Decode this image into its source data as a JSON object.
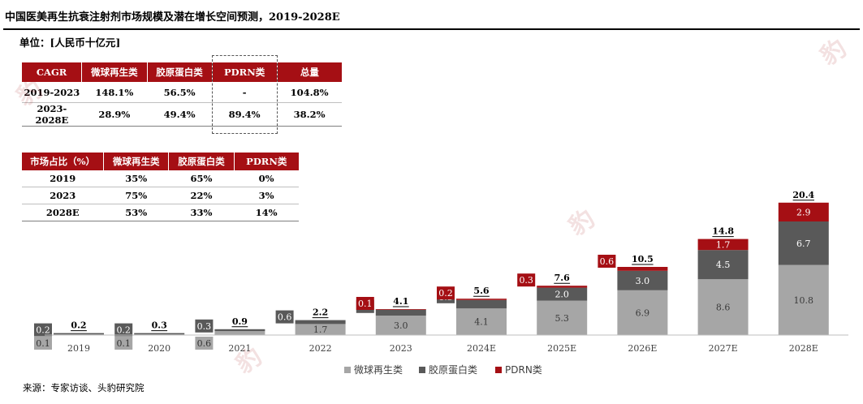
{
  "title": "中国医美再生抗衰注射剂市场规模及潜在增长空间预测，2019-2028E",
  "unit": "单位：[人民币十亿元]",
  "source": "来源：专家访谈、头豹研究院",
  "colors": {
    "microsphere": "#a6a6a6",
    "collagen": "#595959",
    "pdrn": "#a50f14",
    "header": "#a50f14"
  },
  "cagr_table": {
    "headers": [
      "CAGR",
      "微球再生类",
      "胶原蛋白类",
      "PDRN类",
      "总量"
    ],
    "rows": [
      [
        "2019-2023",
        "148.1%",
        "56.5%",
        "-",
        "104.8%"
      ],
      [
        "2023-2028E",
        "28.9%",
        "49.4%",
        "89.4%",
        "38.2%"
      ]
    ]
  },
  "share_table": {
    "headers": [
      "市场占比（%）",
      "微球再生类",
      "胶原蛋白类",
      "PDRN类"
    ],
    "rows": [
      [
        "2019",
        "35%",
        "65%",
        "0%"
      ],
      [
        "2023",
        "75%",
        "22%",
        "3%"
      ],
      [
        "2028E",
        "53%",
        "33%",
        "14%"
      ]
    ]
  },
  "chart_data": {
    "type": "bar",
    "stacked": true,
    "categories": [
      "2019",
      "2020",
      "2021",
      "2022",
      "2023",
      "2024E",
      "2025E",
      "2026E",
      "2027E",
      "2028E"
    ],
    "series": [
      {
        "name": "微球再生类",
        "color": "#a6a6a6",
        "values": [
          0.1,
          0.1,
          0.6,
          1.7,
          3.0,
          4.1,
          5.3,
          6.9,
          8.6,
          10.8
        ],
        "labels": [
          "0.1",
          "0.1",
          "0.6",
          "1.7",
          "3.0",
          "4.1",
          "5.3",
          "6.9",
          "8.6",
          "10.8"
        ]
      },
      {
        "name": "胶原蛋白类",
        "color": "#595959",
        "values": [
          0.2,
          0.2,
          0.3,
          0.6,
          0.9,
          1.3,
          2.0,
          3.0,
          4.5,
          6.7
        ],
        "labels": [
          "0.2",
          "0.2",
          "0.3",
          "0.6",
          "0.9",
          "1.3",
          "2.0",
          "3.0",
          "4.5",
          "6.7"
        ]
      },
      {
        "name": "PDRN类",
        "color": "#a50f14",
        "values": [
          0,
          0,
          0,
          0,
          0.1,
          0.2,
          0.3,
          0.6,
          1.7,
          2.9
        ],
        "labels": [
          "",
          "",
          "",
          "",
          "0.1",
          "0.2",
          "0.3",
          "0.6",
          "1.7",
          "2.9"
        ]
      }
    ],
    "totals": [
      "0.2",
      "0.3",
      "0.9",
      "2.2",
      "4.1",
      "5.6",
      "7.6",
      "10.5",
      "14.8",
      "20.4"
    ],
    "legend": [
      "微球再生类",
      "胶原蛋白类",
      "PDRN类"
    ],
    "legend_position": "bottom-right",
    "ylim": [
      0,
      21
    ],
    "grid": false
  }
}
